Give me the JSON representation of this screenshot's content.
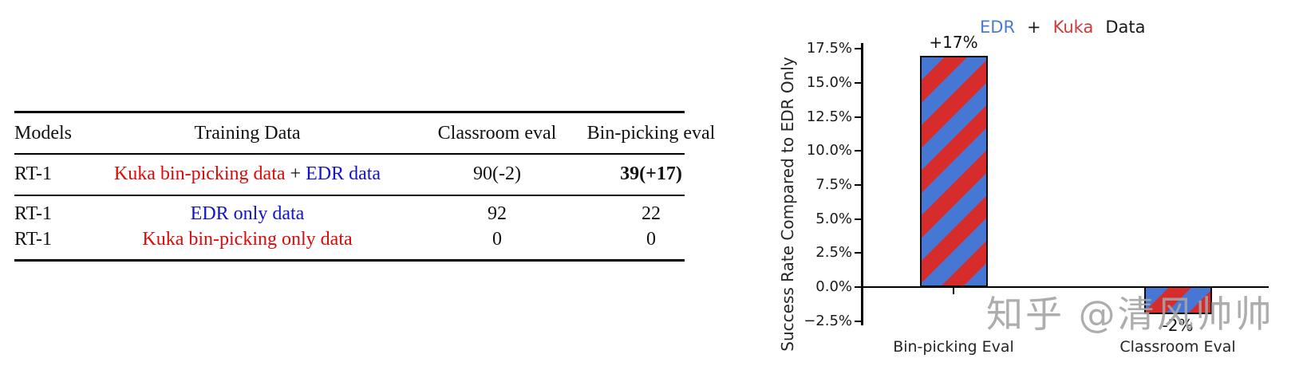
{
  "table": {
    "headers": [
      "Models",
      "Training Data",
      "Classroom eval",
      "Bin-picking eval"
    ],
    "rows": [
      {
        "model": "RT-1",
        "training_parts": [
          {
            "text": "Kuka bin-picking data ",
            "color": "#e00808"
          },
          {
            "text": "+ ",
            "color": "#111111"
          },
          {
            "text": "EDR data",
            "color": "#1212cc"
          }
        ],
        "classroom": "90(-2)",
        "binpicking": "39(+17)"
      },
      {
        "model": "RT-1",
        "training_parts": [
          {
            "text": "EDR only data",
            "color": "#1212cc"
          }
        ],
        "classroom": "92",
        "binpicking": "22"
      },
      {
        "model": "RT-1",
        "training_parts": [
          {
            "text": "Kuka bin-picking only data",
            "color": "#e00808"
          }
        ],
        "classroom": "0",
        "binpicking": "0"
      }
    ]
  },
  "chart_data": {
    "type": "bar",
    "title_parts": [
      {
        "text": "EDR",
        "color": "#4a7bd4"
      },
      {
        "text": "+",
        "color": "#1a1a1a"
      },
      {
        "text": "Kuka",
        "color": "#cc3b3b"
      },
      {
        "text": "Data",
        "color": "#1a1a1a"
      }
    ],
    "categories": [
      "Bin-picking Eval",
      "Classroom Eval"
    ],
    "values": [
      17,
      -2
    ],
    "bar_labels": [
      "+17%",
      "-2%"
    ],
    "ylabel": "Success Rate Compared to EDR Only",
    "yticks": [
      "17.5%",
      "15.0%",
      "12.5%",
      "10.0%",
      "7.5%",
      "5.0%",
      "2.5%",
      "0.0%",
      "−2.5%"
    ],
    "ytick_values": [
      17.5,
      15.0,
      12.5,
      10.0,
      7.5,
      5.0,
      2.5,
      0.0,
      -2.5
    ],
    "ylim": [
      -2.5,
      17.5
    ],
    "grid": false,
    "legend_position": "top",
    "hatch": "diagonal-stripes",
    "bar_fill_blue": "#4677d4",
    "bar_fill_red": "#d62c2c"
  },
  "watermark": "知乎 @清风帅帅"
}
